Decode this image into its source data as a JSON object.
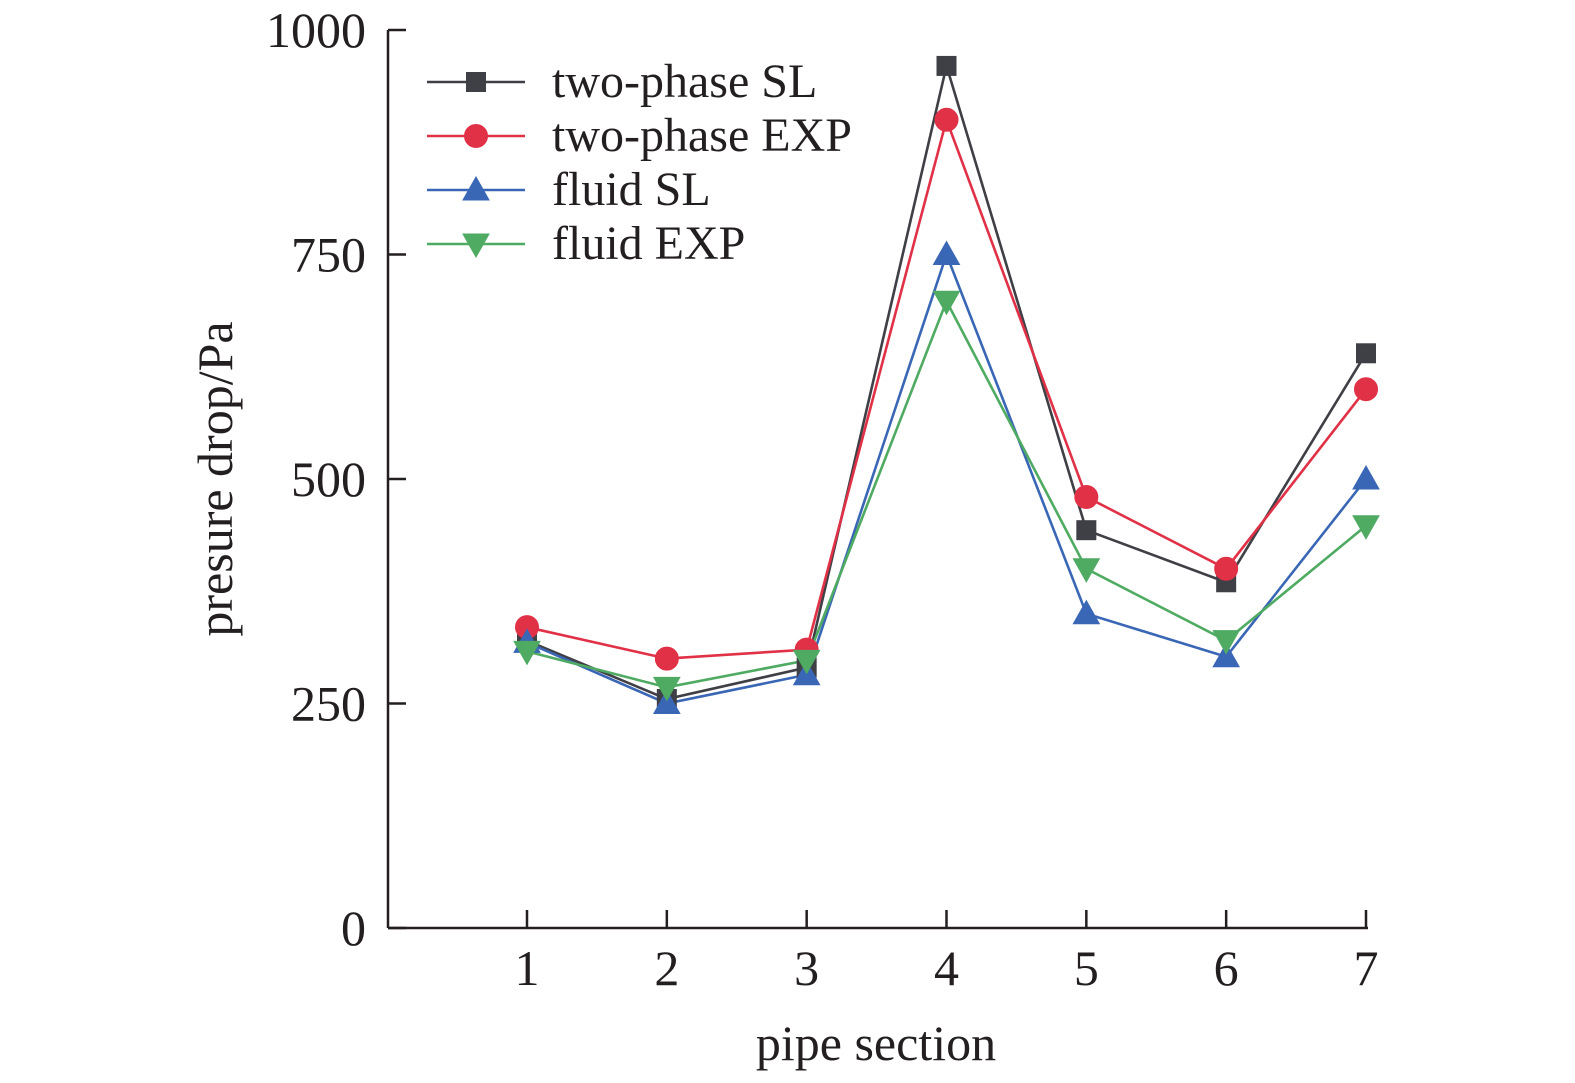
{
  "chart_data": {
    "type": "line",
    "title": "",
    "xlabel": "pipe section",
    "ylabel": "presure drop/Pa",
    "x": [
      1,
      2,
      3,
      4,
      5,
      6,
      7
    ],
    "xticks": [
      "1",
      "2",
      "3",
      "4",
      "5",
      "6",
      "7"
    ],
    "yticks": [
      "0",
      "250",
      "500",
      "750",
      "1000"
    ],
    "ylim": [
      0,
      1000
    ],
    "grid": false,
    "legend_position": "top-left",
    "series": [
      {
        "name": "two-phase SL",
        "color": "#3f3f46",
        "marker": "square",
        "values": [
          320,
          255,
          290,
          960,
          443,
          385,
          640
        ]
      },
      {
        "name": "two-phase EXP",
        "color": "#e03147",
        "marker": "circle",
        "values": [
          335,
          300,
          310,
          900,
          480,
          400,
          600
        ]
      },
      {
        "name": "fluid SL",
        "color": "#3a67b5",
        "marker": "triangle-up",
        "values": [
          318,
          250,
          282,
          750,
          350,
          302,
          500
        ]
      },
      {
        "name": "fluid EXP",
        "color": "#4faa62",
        "marker": "triangle-down",
        "values": [
          308,
          268,
          298,
          698,
          400,
          320,
          448
        ]
      }
    ]
  }
}
